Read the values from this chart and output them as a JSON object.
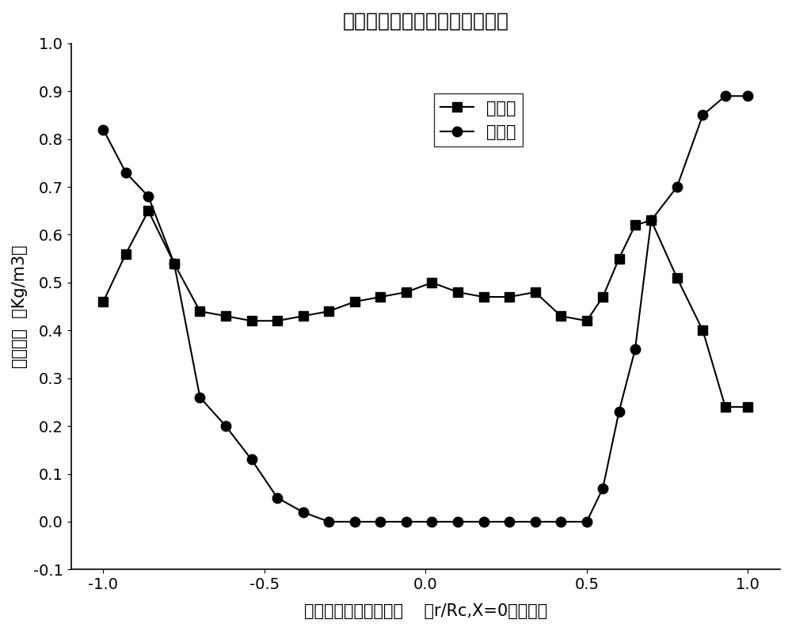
{
  "title": "稳燃装置对煤粉浓度分布的影响",
  "xlabel": "截面上距圆心相对距离    （r/Rc,X=0为圆心）",
  "ylabel": "煤粉浓度  （Kg/m3）",
  "xlim": [
    -1.1,
    1.1
  ],
  "ylim": [
    -0.1,
    1.0
  ],
  "xticks": [
    -1.0,
    -0.5,
    0.0,
    0.5,
    1.0
  ],
  "yticks": [
    -0.1,
    0.0,
    0.1,
    0.2,
    0.3,
    0.4,
    0.5,
    0.6,
    0.7,
    0.8,
    0.9,
    1.0
  ],
  "series1_label": "无钝体",
  "series2_label": "有钝体",
  "series1_x": [
    -1.0,
    -0.93,
    -0.86,
    -0.78,
    -0.7,
    -0.62,
    -0.54,
    -0.46,
    -0.38,
    -0.3,
    -0.22,
    -0.14,
    -0.06,
    0.02,
    0.1,
    0.18,
    0.26,
    0.34,
    0.42,
    0.5,
    0.55,
    0.6,
    0.65,
    0.7,
    0.78,
    0.86,
    0.93,
    1.0
  ],
  "series1_y": [
    0.46,
    0.56,
    0.65,
    0.54,
    0.44,
    0.43,
    0.42,
    0.42,
    0.43,
    0.44,
    0.46,
    0.47,
    0.48,
    0.5,
    0.48,
    0.47,
    0.47,
    0.48,
    0.43,
    0.42,
    0.47,
    0.55,
    0.62,
    0.63,
    0.51,
    0.4,
    0.24,
    0.24
  ],
  "series2_x": [
    -1.0,
    -0.93,
    -0.86,
    -0.78,
    -0.7,
    -0.62,
    -0.54,
    -0.46,
    -0.38,
    -0.3,
    -0.22,
    -0.14,
    -0.06,
    0.02,
    0.1,
    0.18,
    0.26,
    0.34,
    0.42,
    0.5,
    0.55,
    0.6,
    0.65,
    0.7,
    0.78,
    0.86,
    0.93,
    1.0
  ],
  "series2_y": [
    0.82,
    0.73,
    0.68,
    0.54,
    0.26,
    0.2,
    0.13,
    0.05,
    0.02,
    0.0,
    0.0,
    0.0,
    0.0,
    0.0,
    0.0,
    0.0,
    0.0,
    0.0,
    0.0,
    0.0,
    0.07,
    0.23,
    0.36,
    0.63,
    0.7,
    0.85,
    0.89,
    0.89
  ],
  "line_color": "black",
  "marker1": "s",
  "marker2": "o",
  "marker_size": 8,
  "line_width": 1.5,
  "title_fontsize": 18,
  "label_fontsize": 15,
  "tick_fontsize": 14,
  "legend_fontsize": 15
}
